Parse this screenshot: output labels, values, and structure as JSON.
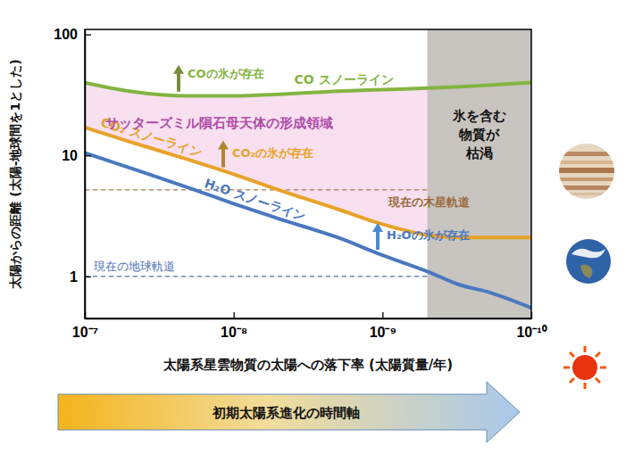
{
  "chart_data": {
    "type": "line",
    "x_label": "太陽系星雲物質の太陽への落下率 (太陽質量/年)",
    "y_label": "太陽からの距離 (太陽-地球間を1とした)",
    "time_axis_label": "初期太陽系進化の時間軸",
    "log": true,
    "grid": false,
    "xlim": [
      1e-07,
      1e-10
    ],
    "ylim": [
      0.45,
      110
    ],
    "xticks": [
      {
        "value": 1e-07,
        "label": "10⁻⁷"
      },
      {
        "value": 1e-08,
        "label": "10⁻⁸"
      },
      {
        "value": 1e-09,
        "label": "10⁻⁹"
      },
      {
        "value": 1e-10,
        "label": "10⁻¹⁰"
      }
    ],
    "yticks": [
      1,
      10,
      100
    ],
    "x": [
      1e-07,
      5e-08,
      2e-08,
      1e-08,
      5e-09,
      2e-09,
      1e-09,
      5e-10,
      3e-10,
      2e-10,
      1e-10
    ],
    "series": [
      {
        "name": "CO スノーライン",
        "color": "#84b440",
        "annotation": "COの氷が存在",
        "values": [
          40,
          34,
          31,
          31,
          32,
          34,
          35,
          36,
          37,
          38,
          40
        ]
      },
      {
        "name": "CO₂ スノーライン",
        "color": "#e8a227",
        "annotation": "CO₂の氷が存在",
        "values": [
          17,
          13,
          9.2,
          7.0,
          5.2,
          3.6,
          2.7,
          2.2,
          2.1,
          2.1,
          2.1
        ]
      },
      {
        "name": "H₂O スノーライン",
        "color": "#4a78bf",
        "annotation": "H₂Oの氷が存在",
        "values": [
          10.5,
          7.9,
          5.4,
          4.0,
          3.0,
          2.1,
          1.5,
          1.1,
          0.85,
          0.75,
          0.55
        ]
      }
    ],
    "formation_region": {
      "label": "サッターズミル隕石母天体の形成領域",
      "color": "#f8e0f0"
    },
    "depleted_region": {
      "range": [
        5e-10,
        1e-10
      ],
      "label": [
        "氷を含む",
        "物質が",
        "枯渇"
      ],
      "color": "#c8c4c0"
    },
    "reference_lines": [
      {
        "name": "現在の木星軌道",
        "value": 5.2,
        "color": "#a47a4c"
      },
      {
        "name": "現在の地球軌道",
        "value": 1,
        "color": "#4a6fb5"
      }
    ]
  }
}
